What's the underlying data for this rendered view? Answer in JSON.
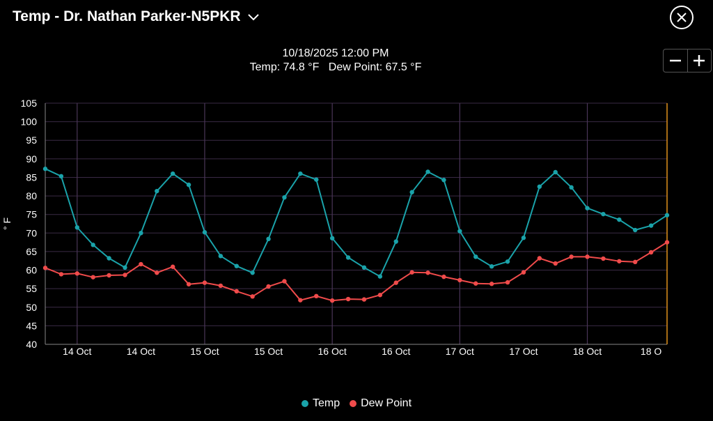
{
  "header": {
    "title": "Temp - Dr. Nathan Parker-N5PKR"
  },
  "readout": {
    "datetime": "10/18/2025 12:00 PM",
    "temp": "Temp: 74.8 °F",
    "dew_point": "Dew Point: 67.5 °F"
  },
  "zoom": {
    "minus": "−",
    "plus": "+"
  },
  "colors": {
    "temp": "#1aa3aa",
    "dew": "#f04b4b",
    "grid": "#3a2a45",
    "vgrid": "#4a3658",
    "cursor": "#e0911a"
  },
  "chart_data": {
    "type": "line",
    "ylabel": "° F",
    "ylim": [
      40,
      105
    ],
    "yticks": [
      40,
      45,
      50,
      55,
      60,
      65,
      70,
      75,
      80,
      85,
      90,
      95,
      100,
      105
    ],
    "x_tick_labels": [
      "14 Oct",
      "14 Oct",
      "15 Oct",
      "15 Oct",
      "16 Oct",
      "16 Oct",
      "17 Oct",
      "17 Oct",
      "18 Oct",
      "18 O"
    ],
    "series": [
      {
        "name": "Temp",
        "values": [
          87.3,
          85.3,
          71.5,
          66.8,
          63.2,
          60.7,
          70.0,
          81.3,
          86.0,
          83.0,
          70.2,
          63.8,
          61.1,
          59.3,
          68.4,
          79.6,
          86.0,
          84.4,
          68.6,
          63.4,
          60.7,
          58.3,
          67.7,
          81.0,
          86.5,
          84.3,
          70.5,
          63.6,
          61.0,
          62.3,
          68.7,
          82.5,
          86.4,
          82.3,
          76.7,
          75.1,
          73.6,
          70.8,
          72.0,
          74.8
        ]
      },
      {
        "name": "Dew Point",
        "values": [
          60.6,
          58.9,
          59.1,
          58.1,
          58.6,
          58.7,
          61.6,
          59.3,
          60.9,
          56.2,
          56.6,
          55.8,
          54.3,
          52.9,
          55.6,
          57.0,
          51.9,
          53.0,
          51.8,
          52.2,
          52.1,
          53.3,
          56.6,
          59.4,
          59.3,
          58.2,
          57.3,
          56.4,
          56.3,
          56.7,
          59.4,
          63.2,
          61.8,
          63.6,
          63.6,
          63.1,
          62.4,
          62.2,
          64.8,
          67.5
        ]
      }
    ]
  }
}
